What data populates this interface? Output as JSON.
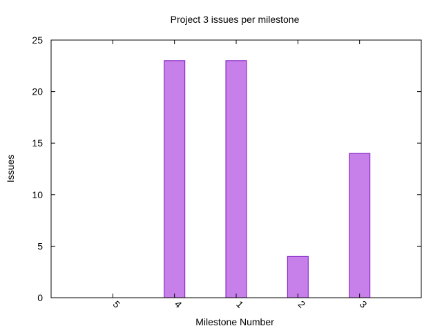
{
  "chart_data": {
    "type": "bar",
    "title": "Project 3 issues per milestone",
    "xlabel": "Milestone Number",
    "ylabel": "Issues",
    "categories": [
      "5",
      "4",
      "1",
      "2",
      "3"
    ],
    "values": [
      0,
      23,
      23,
      4,
      14
    ],
    "ylim": [
      0,
      25
    ],
    "yticks": [
      0,
      5,
      10,
      15,
      20,
      25
    ],
    "grid": false,
    "legend": "none",
    "colors": {
      "bar_fill": "#c77fe9",
      "bar_stroke": "#7a14c2",
      "axis": "#000000"
    }
  }
}
